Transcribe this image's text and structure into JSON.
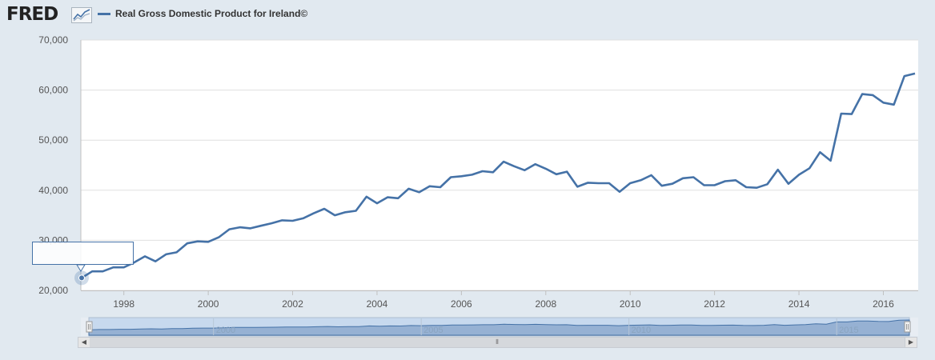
{
  "header": {
    "logo": "FRED",
    "legend_label": "Real Gross Domestic Product for Ireland©",
    "series_color": "#4572a7"
  },
  "chart_data": {
    "type": "line",
    "title": "Real Gross Domestic Product for Ireland©",
    "xlabel": "",
    "ylabel": "",
    "ylim": [
      20000,
      70000
    ],
    "yticks": [
      20000,
      30000,
      40000,
      50000,
      60000,
      70000
    ],
    "ytick_labels": [
      "20,000",
      "30,000",
      "40,000",
      "50,000",
      "60,000",
      "70,000"
    ],
    "xlim": [
      1997.0,
      2016.75
    ],
    "xticks": [
      1998,
      2000,
      2002,
      2004,
      2006,
      2008,
      2010,
      2012,
      2014,
      2016
    ],
    "xtick_labels": [
      "1998",
      "2000",
      "2002",
      "2004",
      "2006",
      "2008",
      "2010",
      "2012",
      "2014",
      "2016"
    ],
    "grid": true,
    "series": [
      {
        "name": "Real Gross Domestic Product for Ireland©",
        "x": [
          1997.0,
          1997.25,
          1997.5,
          1997.75,
          1998.0,
          1998.25,
          1998.5,
          1998.75,
          1999.0,
          1999.25,
          1999.5,
          1999.75,
          2000.0,
          2000.25,
          2000.5,
          2000.75,
          2001.0,
          2001.25,
          2001.5,
          2001.75,
          2002.0,
          2002.25,
          2002.5,
          2002.75,
          2003.0,
          2003.25,
          2003.5,
          2003.75,
          2004.0,
          2004.25,
          2004.5,
          2004.75,
          2005.0,
          2005.25,
          2005.5,
          2005.75,
          2006.0,
          2006.25,
          2006.5,
          2006.75,
          2007.0,
          2007.25,
          2007.5,
          2007.75,
          2008.0,
          2008.25,
          2008.5,
          2008.75,
          2009.0,
          2009.25,
          2009.5,
          2009.75,
          2010.0,
          2010.25,
          2010.5,
          2010.75,
          2011.0,
          2011.25,
          2011.5,
          2011.75,
          2012.0,
          2012.25,
          2012.5,
          2012.75,
          2013.0,
          2013.25,
          2013.5,
          2013.75,
          2014.0,
          2014.25,
          2014.5,
          2014.75,
          2015.0,
          2015.25,
          2015.5,
          2015.75,
          2016.0,
          2016.25,
          2016.5,
          2016.75
        ],
        "values": [
          22500,
          23800,
          23800,
          24600,
          24600,
          25600,
          26800,
          25800,
          27200,
          27600,
          29400,
          29800,
          29700,
          30600,
          32200,
          32600,
          32400,
          32900,
          33400,
          34000,
          33900,
          34400,
          35400,
          36300,
          35000,
          35600,
          35900,
          38700,
          37400,
          38600,
          38400,
          40300,
          39600,
          40800,
          40600,
          42600,
          42800,
          43100,
          43800,
          43600,
          45700,
          44800,
          44000,
          45200,
          44300,
          43200,
          43700,
          40700,
          41500,
          41400,
          41400,
          39700,
          41400,
          42000,
          43000,
          40900,
          41300,
          42400,
          42600,
          41000,
          41000,
          41800,
          42000,
          40600,
          40500,
          41200,
          44100,
          41300,
          43100,
          44400,
          47600,
          45900,
          55300,
          55200,
          59200,
          59000,
          57500,
          57100,
          62800,
          63300
        ]
      }
    ],
    "navigator": {
      "xtick_labels": [
        "2000",
        "2005",
        "2010",
        "2015"
      ],
      "xticks": [
        2000,
        2005,
        2010,
        2015
      ]
    }
  }
}
